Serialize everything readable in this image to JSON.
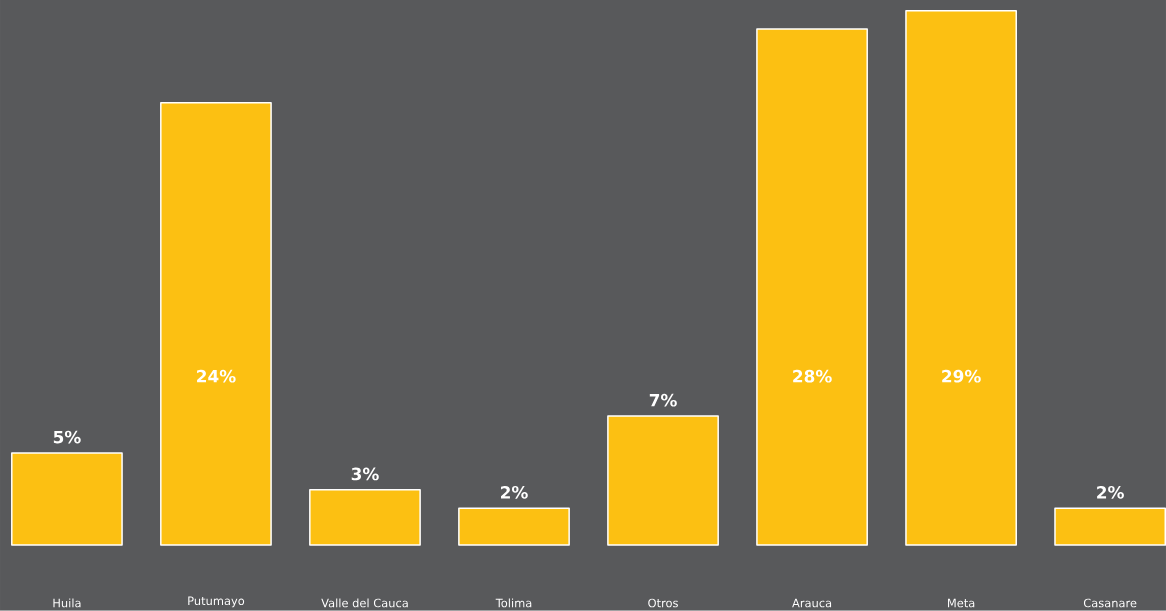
{
  "chart_data": {
    "type": "bar",
    "color": "#fcc012",
    "categories": [
      "Huila",
      "Putumayo",
      "Valle del Cauca",
      "Tolima",
      "Otros",
      "Arauca",
      "Meta",
      "Casanare"
    ],
    "values": [
      5,
      24,
      3,
      2,
      7,
      28,
      29,
      2
    ],
    "value_labels": [
      "5%",
      "24%",
      "3%",
      "2%",
      "7%",
      "28%",
      "29%",
      "2%"
    ]
  }
}
